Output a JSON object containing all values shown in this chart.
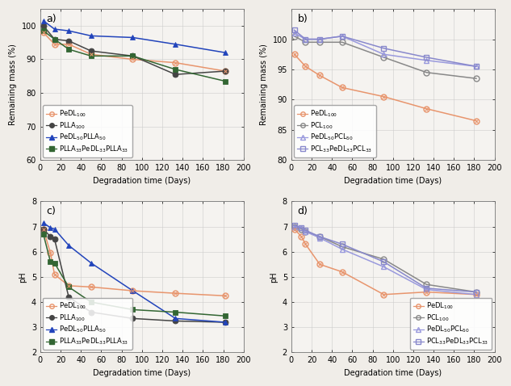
{
  "panel_a": {
    "title": "a)",
    "xlabel": "Degradation time (Days)",
    "ylabel": "Remaining mass (%)",
    "xlim": [
      0,
      200
    ],
    "ylim": [
      60,
      105
    ],
    "yticks": [
      60,
      70,
      80,
      90,
      100
    ],
    "xticks": [
      0,
      20,
      40,
      60,
      80,
      100,
      120,
      140,
      160,
      180,
      200
    ],
    "legend_loc": "lower left",
    "series": [
      {
        "label": "PeDL$_{100}$",
        "x": [
          3,
          14,
          28,
          50,
          91,
          133,
          182
        ],
        "y": [
          98.0,
          94.5,
          94.5,
          91.5,
          90.0,
          89.0,
          86.5
        ],
        "color": "#E8956D",
        "marker": "o",
        "marker_facecolor": "none",
        "marker_edgecolor": "#E8956D",
        "marker_inner": true,
        "linestyle": "-"
      },
      {
        "label": "PLLA$_{100}$",
        "x": [
          3,
          14,
          28,
          50,
          91,
          133,
          182
        ],
        "y": [
          100.0,
          96.0,
          95.5,
          92.5,
          91.0,
          85.5,
          86.5
        ],
        "color": "#444444",
        "marker": "o",
        "marker_facecolor": "#444444",
        "marker_edgecolor": "#444444",
        "marker_inner": false,
        "linestyle": "-"
      },
      {
        "label": "PeDL$_{50}$PLLA$_{50}$",
        "x": [
          3,
          14,
          28,
          50,
          91,
          133,
          182
        ],
        "y": [
          101.5,
          99.0,
          98.5,
          97.0,
          96.5,
          94.5,
          92.0
        ],
        "color": "#2244BB",
        "marker": "^",
        "marker_facecolor": "#2244BB",
        "marker_edgecolor": "#2244BB",
        "marker_inner": false,
        "linestyle": "-"
      },
      {
        "label": "PLLA$_{33}$PeDL$_{33}$PLLA$_{33}$",
        "x": [
          3,
          14,
          28,
          50,
          91,
          133,
          182
        ],
        "y": [
          98.5,
          96.0,
          93.0,
          91.0,
          91.0,
          87.0,
          83.5
        ],
        "color": "#336633",
        "marker": "s",
        "marker_facecolor": "#336633",
        "marker_edgecolor": "#336633",
        "marker_inner": false,
        "linestyle": "-"
      }
    ]
  },
  "panel_b": {
    "title": "b)",
    "xlabel": "Degradation time (Days)",
    "ylabel": "Remaining mass (%)",
    "xlim": [
      0,
      200
    ],
    "ylim": [
      80,
      105
    ],
    "yticks": [
      80,
      85,
      90,
      95,
      100
    ],
    "xticks": [
      0,
      20,
      40,
      60,
      80,
      100,
      120,
      140,
      160,
      180,
      200
    ],
    "legend_loc": "lower left",
    "series": [
      {
        "label": "PeDL$_{100}$",
        "x": [
          3,
          14,
          28,
          50,
          91,
          133,
          182
        ],
        "y": [
          97.5,
          95.5,
          94.0,
          92.0,
          90.5,
          88.5,
          86.5
        ],
        "color": "#E8956D",
        "marker": "o",
        "marker_facecolor": "none",
        "marker_edgecolor": "#E8956D",
        "marker_inner": true,
        "linestyle": "-"
      },
      {
        "label": "PCL$_{100}$",
        "x": [
          3,
          14,
          28,
          50,
          91,
          133,
          182
        ],
        "y": [
          100.5,
          99.5,
          99.5,
          99.5,
          97.0,
          94.5,
          93.5
        ],
        "color": "#888888",
        "marker": "o",
        "marker_facecolor": "none",
        "marker_edgecolor": "#888888",
        "marker_inner": false,
        "linestyle": "-"
      },
      {
        "label": "PeDL$_{50}$PCL$_{50}$",
        "x": [
          3,
          14,
          28,
          50,
          91,
          133,
          182
        ],
        "y": [
          101.0,
          100.0,
          100.0,
          100.5,
          97.5,
          96.5,
          95.5
        ],
        "color": "#9999DD",
        "marker": "^",
        "marker_facecolor": "none",
        "marker_edgecolor": "#9999DD",
        "marker_inner": false,
        "linestyle": "-"
      },
      {
        "label": "PCL$_{33}$PeDL$_{33}$PCL$_{33}$",
        "x": [
          3,
          14,
          28,
          50,
          91,
          133,
          182
        ],
        "y": [
          101.5,
          100.0,
          100.0,
          100.5,
          98.5,
          97.0,
          95.5
        ],
        "color": "#8888CC",
        "marker": "s",
        "marker_facecolor": "none",
        "marker_edgecolor": "#8888CC",
        "marker_inner": false,
        "linestyle": "-"
      }
    ]
  },
  "panel_c": {
    "title": "c)",
    "xlabel": "Degradation time (Days)",
    "ylabel": "pH",
    "xlim": [
      0,
      200
    ],
    "ylim": [
      2,
      8
    ],
    "yticks": [
      2,
      3,
      4,
      5,
      6,
      7,
      8
    ],
    "xticks": [
      0,
      20,
      40,
      60,
      80,
      100,
      120,
      140,
      160,
      180,
      200
    ],
    "legend_loc": "lower left",
    "series": [
      {
        "label": "PeDL$_{100}$",
        "x": [
          3,
          10,
          14,
          28,
          50,
          91,
          133,
          182
        ],
        "y": [
          6.9,
          5.95,
          5.1,
          4.65,
          4.6,
          4.45,
          4.35,
          4.25
        ],
        "color": "#E8956D",
        "marker": "o",
        "marker_facecolor": "none",
        "marker_edgecolor": "#E8956D",
        "marker_inner": true,
        "linestyle": "-"
      },
      {
        "label": "PLLA$_{100}$",
        "x": [
          3,
          10,
          14,
          28,
          50,
          91,
          133,
          182
        ],
        "y": [
          6.9,
          6.6,
          6.5,
          4.2,
          3.6,
          3.35,
          3.25,
          3.2
        ],
        "color": "#444444",
        "marker": "o",
        "marker_facecolor": "#444444",
        "marker_edgecolor": "#444444",
        "marker_inner": false,
        "linestyle": "-"
      },
      {
        "label": "PeDL$_{50}$PLLA$_{50}$",
        "x": [
          3,
          10,
          14,
          28,
          50,
          91,
          133,
          182
        ],
        "y": [
          7.15,
          6.95,
          6.9,
          6.25,
          5.55,
          4.45,
          3.35,
          3.2
        ],
        "color": "#2244BB",
        "marker": "^",
        "marker_facecolor": "#2244BB",
        "marker_edgecolor": "#2244BB",
        "marker_inner": false,
        "linestyle": "-"
      },
      {
        "label": "PLLA$_{33}$PeDL$_{33}$PLLA$_{33}$",
        "x": [
          3,
          10,
          14,
          28,
          50,
          91,
          133,
          182
        ],
        "y": [
          6.7,
          5.6,
          5.55,
          4.6,
          4.0,
          3.7,
          3.6,
          3.45
        ],
        "color": "#336633",
        "marker": "s",
        "marker_facecolor": "#336633",
        "marker_edgecolor": "#336633",
        "marker_inner": false,
        "linestyle": "-"
      }
    ]
  },
  "panel_d": {
    "title": "d)",
    "xlabel": "Degradation time (Days)",
    "ylabel": "pH",
    "xlim": [
      0,
      200
    ],
    "ylim": [
      2,
      8
    ],
    "yticks": [
      2,
      3,
      4,
      5,
      6,
      7,
      8
    ],
    "xticks": [
      0,
      20,
      40,
      60,
      80,
      100,
      120,
      140,
      160,
      180,
      200
    ],
    "legend_loc": "lower right",
    "series": [
      {
        "label": "PeDL$_{100}$",
        "x": [
          3,
          10,
          14,
          28,
          50,
          91,
          133,
          182
        ],
        "y": [
          6.9,
          6.6,
          6.3,
          5.5,
          5.2,
          4.3,
          4.4,
          4.3
        ],
        "color": "#E8956D",
        "marker": "o",
        "marker_facecolor": "none",
        "marker_edgecolor": "#E8956D",
        "marker_inner": true,
        "linestyle": "-"
      },
      {
        "label": "PCL$_{100}$",
        "x": [
          3,
          10,
          14,
          28,
          50,
          91,
          133,
          182
        ],
        "y": [
          7.0,
          6.9,
          6.8,
          6.6,
          6.2,
          5.7,
          4.7,
          4.4
        ],
        "color": "#888888",
        "marker": "o",
        "marker_facecolor": "none",
        "marker_edgecolor": "#888888",
        "marker_inner": false,
        "linestyle": "-"
      },
      {
        "label": "PeDL$_{50}$PCL$_{50}$",
        "x": [
          3,
          10,
          14,
          28,
          50,
          91,
          133,
          182
        ],
        "y": [
          7.0,
          6.95,
          6.8,
          6.55,
          6.1,
          5.4,
          4.5,
          4.3
        ],
        "color": "#9999DD",
        "marker": "^",
        "marker_facecolor": "none",
        "marker_edgecolor": "#9999DD",
        "marker_inner": false,
        "linestyle": "-"
      },
      {
        "label": "PCL$_{33}$PeDL$_{33}$PCL$_{33}$",
        "x": [
          3,
          10,
          14,
          28,
          50,
          91,
          133,
          182
        ],
        "y": [
          7.05,
          6.95,
          6.85,
          6.6,
          6.3,
          5.6,
          4.55,
          4.4
        ],
        "color": "#8888CC",
        "marker": "s",
        "marker_facecolor": "none",
        "marker_edgecolor": "#8888CC",
        "marker_inner": false,
        "linestyle": "-"
      }
    ]
  },
  "figure_bg": "#F0EDE8",
  "axes_bg": "#F5F3F0",
  "grid_color": "#CCCCCC",
  "font_size": 7,
  "legend_font_size": 6,
  "marker_size": 5,
  "linewidth": 1.1
}
